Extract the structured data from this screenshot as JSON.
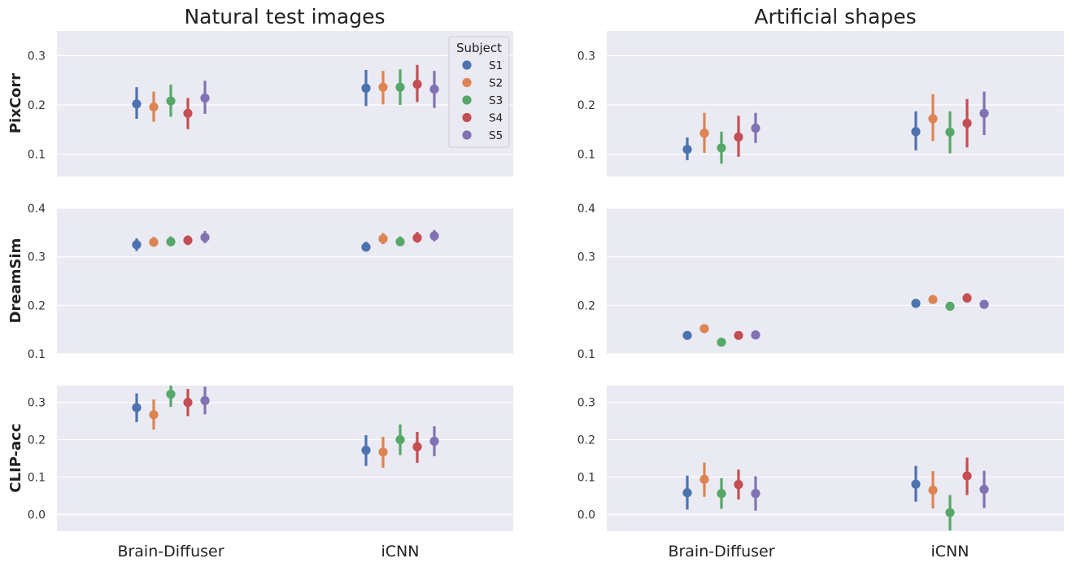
{
  "column_titles": [
    "Natural test images",
    "Artificial shapes"
  ],
  "row_labels": [
    "PixCorr",
    "DreamSim",
    "CLIP-acc"
  ],
  "legend": {
    "title": "Subject",
    "placement": "upper-right of top-left panel",
    "entries": [
      "S1",
      "S2",
      "S3",
      "S4",
      "S5"
    ]
  },
  "colors": {
    "panel_background": "#eaeaf2",
    "grid": "#ffffff",
    "S1": "#4c72b0",
    "S2": "#dd8452",
    "S3": "#55a868",
    "S4": "#c44e52",
    "S5": "#8172b3"
  },
  "chart_data": [
    {
      "type": "point-errorbar",
      "title": "Natural test images",
      "ylabel": "PixCorr",
      "categories": [
        "Brain-Diffuser",
        "iCNN"
      ],
      "ylim": [
        0.055,
        0.35
      ],
      "yticks": [
        0.1,
        0.2,
        0.3
      ],
      "grid": true,
      "series": [
        {
          "name": "S1",
          "values": [
            0.202,
            0.234
          ],
          "err_low": [
            0.172,
            0.198
          ],
          "err_high": [
            0.236,
            0.271
          ]
        },
        {
          "name": "S2",
          "values": [
            0.196,
            0.236
          ],
          "err_low": [
            0.166,
            0.201
          ],
          "err_high": [
            0.227,
            0.269
          ]
        },
        {
          "name": "S3",
          "values": [
            0.208,
            0.236
          ],
          "err_low": [
            0.176,
            0.2
          ],
          "err_high": [
            0.241,
            0.272
          ]
        },
        {
          "name": "S4",
          "values": [
            0.183,
            0.242
          ],
          "err_low": [
            0.151,
            0.206
          ],
          "err_high": [
            0.214,
            0.281
          ]
        },
        {
          "name": "S5",
          "values": [
            0.214,
            0.232
          ],
          "err_low": [
            0.182,
            0.194
          ],
          "err_high": [
            0.249,
            0.269
          ]
        }
      ]
    },
    {
      "type": "point-errorbar",
      "title": "Artificial shapes",
      "ylabel": "",
      "categories": [
        "Brain-Diffuser",
        "iCNN"
      ],
      "ylim": [
        0.055,
        0.35
      ],
      "yticks": [
        0.1,
        0.2,
        0.3
      ],
      "grid": true,
      "series": [
        {
          "name": "S1",
          "values": [
            0.11,
            0.146
          ],
          "err_low": [
            0.088,
            0.108
          ],
          "err_high": [
            0.134,
            0.187
          ]
        },
        {
          "name": "S2",
          "values": [
            0.143,
            0.172
          ],
          "err_low": [
            0.103,
            0.127
          ],
          "err_high": [
            0.184,
            0.222
          ]
        },
        {
          "name": "S3",
          "values": [
            0.113,
            0.145
          ],
          "err_low": [
            0.081,
            0.102
          ],
          "err_high": [
            0.146,
            0.187
          ]
        },
        {
          "name": "S4",
          "values": [
            0.135,
            0.163
          ],
          "err_low": [
            0.095,
            0.114
          ],
          "err_high": [
            0.178,
            0.212
          ]
        },
        {
          "name": "S5",
          "values": [
            0.153,
            0.183
          ],
          "err_low": [
            0.123,
            0.139
          ],
          "err_high": [
            0.184,
            0.227
          ]
        }
      ]
    },
    {
      "type": "point-errorbar",
      "title": "",
      "ylabel": "DreamSim",
      "categories": [
        "Brain-Diffuser",
        "iCNN"
      ],
      "ylim": [
        0.1,
        0.4
      ],
      "yticks": [
        0.1,
        0.2,
        0.3,
        0.4
      ],
      "grid": true,
      "series": [
        {
          "name": "S1",
          "values": [
            0.325,
            0.32
          ],
          "err_low": [
            0.312,
            0.311
          ],
          "err_high": [
            0.338,
            0.331
          ]
        },
        {
          "name": "S2",
          "values": [
            0.33,
            0.337
          ],
          "err_low": [
            0.321,
            0.326
          ],
          "err_high": [
            0.341,
            0.349
          ]
        },
        {
          "name": "S3",
          "values": [
            0.331,
            0.331
          ],
          "err_low": [
            0.322,
            0.322
          ],
          "err_high": [
            0.342,
            0.342
          ]
        },
        {
          "name": "S4",
          "values": [
            0.334,
            0.339
          ],
          "err_low": [
            0.324,
            0.329
          ],
          "err_high": [
            0.344,
            0.351
          ]
        },
        {
          "name": "S5",
          "values": [
            0.34,
            0.343
          ],
          "err_low": [
            0.328,
            0.332
          ],
          "err_high": [
            0.353,
            0.355
          ]
        }
      ]
    },
    {
      "type": "point-errorbar",
      "title": "",
      "ylabel": "",
      "categories": [
        "Brain-Diffuser",
        "iCNN"
      ],
      "ylim": [
        0.1,
        0.4
      ],
      "yticks": [
        0.1,
        0.2,
        0.3,
        0.4
      ],
      "grid": true,
      "series": [
        {
          "name": "S1",
          "values": [
            0.138,
            0.204
          ],
          "err_low": [
            0.132,
            0.196
          ],
          "err_high": [
            0.145,
            0.212
          ]
        },
        {
          "name": "S2",
          "values": [
            0.152,
            0.212
          ],
          "err_low": [
            0.145,
            0.204
          ],
          "err_high": [
            0.159,
            0.22
          ]
        },
        {
          "name": "S3",
          "values": [
            0.124,
            0.198
          ],
          "err_low": [
            0.116,
            0.19
          ],
          "err_high": [
            0.133,
            0.207
          ]
        },
        {
          "name": "S4",
          "values": [
            0.138,
            0.215
          ],
          "err_low": [
            0.131,
            0.206
          ],
          "err_high": [
            0.145,
            0.225
          ]
        },
        {
          "name": "S5",
          "values": [
            0.139,
            0.202
          ],
          "err_low": [
            0.131,
            0.195
          ],
          "err_high": [
            0.147,
            0.209
          ]
        }
      ]
    },
    {
      "type": "point-errorbar",
      "title": "",
      "ylabel": "CLIP-acc",
      "categories": [
        "Brain-Diffuser",
        "iCNN"
      ],
      "ylim": [
        -0.045,
        0.345
      ],
      "yticks": [
        0.0,
        0.1,
        0.2,
        0.3
      ],
      "grid": true,
      "series": [
        {
          "name": "S1",
          "values": [
            0.286,
            0.172
          ],
          "err_low": [
            0.247,
            0.13
          ],
          "err_high": [
            0.324,
            0.212
          ]
        },
        {
          "name": "S2",
          "values": [
            0.267,
            0.167
          ],
          "err_low": [
            0.227,
            0.125
          ],
          "err_high": [
            0.308,
            0.208
          ]
        },
        {
          "name": "S3",
          "values": [
            0.322,
            0.2
          ],
          "err_low": [
            0.288,
            0.159
          ],
          "err_high": [
            0.345,
            0.241
          ]
        },
        {
          "name": "S4",
          "values": [
            0.3,
            0.181
          ],
          "err_low": [
            0.263,
            0.138
          ],
          "err_high": [
            0.336,
            0.221
          ]
        },
        {
          "name": "S5",
          "values": [
            0.305,
            0.196
          ],
          "err_low": [
            0.268,
            0.156
          ],
          "err_high": [
            0.342,
            0.236
          ]
        }
      ]
    },
    {
      "type": "point-errorbar",
      "title": "",
      "ylabel": "",
      "categories": [
        "Brain-Diffuser",
        "iCNN"
      ],
      "ylim": [
        -0.045,
        0.345
      ],
      "yticks": [
        0.0,
        0.1,
        0.2,
        0.3
      ],
      "grid": true,
      "series": [
        {
          "name": "S1",
          "values": [
            0.058,
            0.081
          ],
          "err_low": [
            0.013,
            0.034
          ],
          "err_high": [
            0.104,
            0.13
          ]
        },
        {
          "name": "S2",
          "values": [
            0.094,
            0.065
          ],
          "err_low": [
            0.047,
            0.016
          ],
          "err_high": [
            0.139,
            0.116
          ]
        },
        {
          "name": "S3",
          "values": [
            0.056,
            0.005
          ],
          "err_low": [
            0.015,
            -0.043
          ],
          "err_high": [
            0.097,
            0.052
          ]
        },
        {
          "name": "S4",
          "values": [
            0.08,
            0.103
          ],
          "err_low": [
            0.04,
            0.052
          ],
          "err_high": [
            0.12,
            0.152
          ]
        },
        {
          "name": "S5",
          "values": [
            0.056,
            0.067
          ],
          "err_low": [
            0.01,
            0.017
          ],
          "err_high": [
            0.102,
            0.117
          ]
        }
      ]
    }
  ]
}
